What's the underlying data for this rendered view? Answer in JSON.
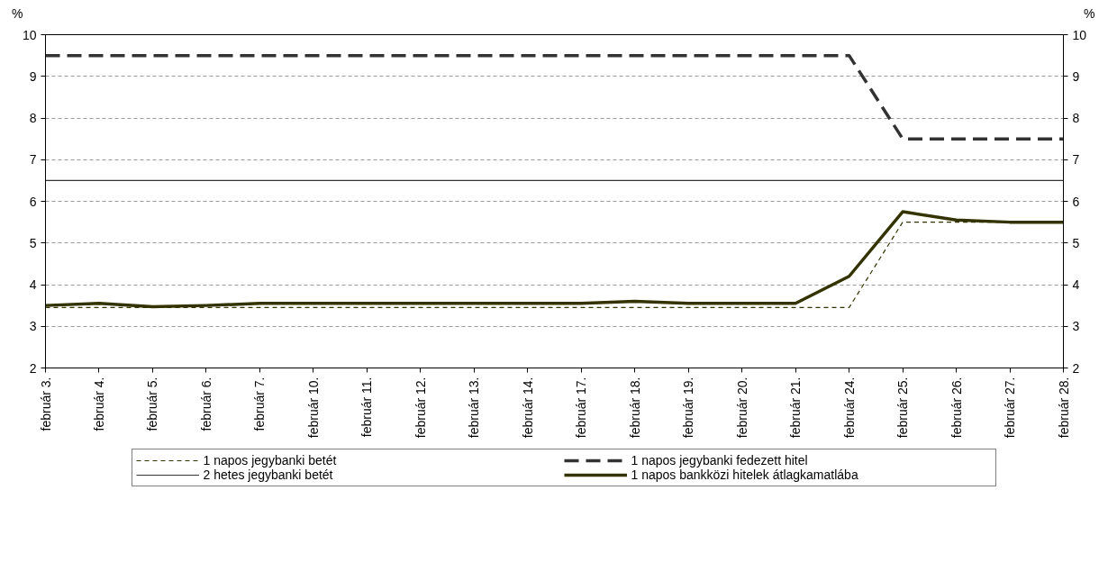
{
  "chart_data": {
    "type": "line",
    "ylabel": "%",
    "y2label": "%",
    "categories": [
      "február 3.",
      "február 4.",
      "február 5.",
      "február 6.",
      "február 7.",
      "február 10.",
      "február 11.",
      "február 12.",
      "február 13.",
      "február 14.",
      "február 17.",
      "február 18.",
      "február 19.",
      "február 20.",
      "február 21.",
      "február 24.",
      "február 25.",
      "február 26.",
      "február 27.",
      "február 28."
    ],
    "series": [
      {
        "name": "1 napos jegybanki betét",
        "color": "#333300",
        "line_style": "dashed",
        "values": [
          3.45,
          3.45,
          3.45,
          3.45,
          3.45,
          3.45,
          3.45,
          3.45,
          3.45,
          3.45,
          3.45,
          3.45,
          3.45,
          3.45,
          3.45,
          3.45,
          5.5,
          5.5,
          5.5,
          5.5
        ]
      },
      {
        "name": "1 napos jegybanki fedezett hitel",
        "color": "#333333",
        "line_style": "dashed",
        "values": [
          9.5,
          9.5,
          9.5,
          9.5,
          9.5,
          9.5,
          9.5,
          9.5,
          9.5,
          9.5,
          9.5,
          9.5,
          9.5,
          9.5,
          9.5,
          9.5,
          7.5,
          7.5,
          7.5,
          7.5
        ]
      },
      {
        "name": "2 hetes jegybanki betét",
        "color": "#333333",
        "line_style": "solid",
        "values": [
          6.5,
          6.5,
          6.5,
          6.5,
          6.5,
          6.5,
          6.5,
          6.5,
          6.5,
          6.5,
          6.5,
          6.5,
          6.5,
          6.5,
          6.5,
          6.5,
          6.5,
          6.5,
          6.5,
          6.5
        ]
      },
      {
        "name": "1 napos bankközi hitelek átlagkamatlába",
        "color": "#333300",
        "line_style": "solid",
        "values": [
          3.5,
          3.55,
          3.47,
          3.5,
          3.55,
          3.55,
          3.55,
          3.55,
          3.55,
          3.55,
          3.55,
          3.6,
          3.55,
          3.55,
          3.55,
          4.2,
          5.75,
          5.55,
          5.5,
          5.5
        ]
      }
    ],
    "ylim": [
      2,
      10
    ],
    "yticks": [
      2,
      3,
      4,
      5,
      6,
      7,
      8,
      9,
      10
    ],
    "y2lim": [
      2,
      10
    ],
    "y2ticks": [
      2,
      3,
      4,
      5,
      6,
      7,
      8,
      9,
      10
    ],
    "grid": "y",
    "legend": "bottom",
    "marker": "none"
  }
}
